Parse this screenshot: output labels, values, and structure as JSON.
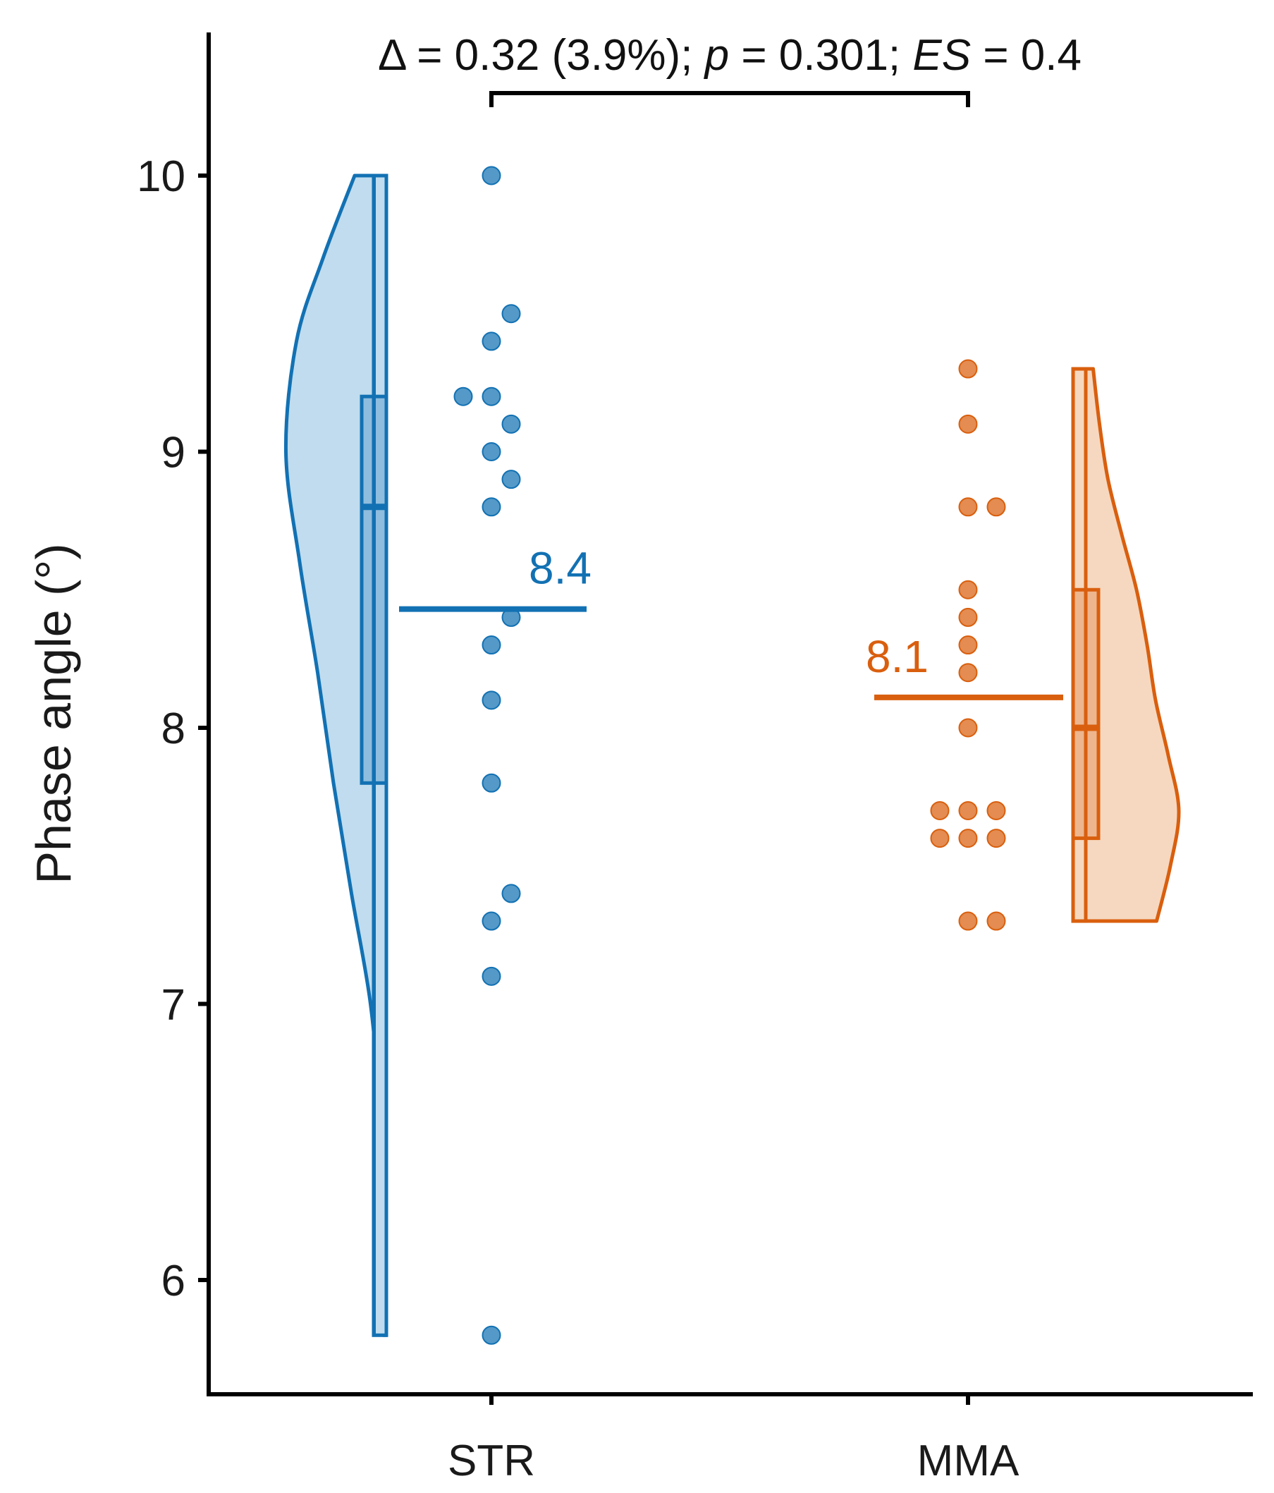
{
  "chart_data": {
    "type": "raincloud",
    "ylabel": "Phase angle (°)",
    "xlabel": "",
    "ylim": [
      5.55,
      10.5
    ],
    "yticks": [
      6,
      7,
      8,
      9,
      10
    ],
    "categories": [
      "STR",
      "MMA"
    ],
    "comparison": {
      "delta_text": "Δ = 0.32 (3.9%); ",
      "p_symbol": "p",
      "p_text": " = 0.301; ",
      "es_symbol": "ES",
      "es_text": " = 0.4"
    },
    "series": [
      {
        "name": "STR",
        "color": "#1271b3",
        "fill": "#c0dcee",
        "mean": 8.43,
        "mean_label": "8.4",
        "box": {
          "min": 5.8,
          "q1": 7.8,
          "median": 8.8,
          "q3": 9.2,
          "max": 10.0
        },
        "points": [
          10.0,
          9.5,
          9.4,
          9.2,
          9.2,
          9.1,
          9.0,
          8.9,
          8.8,
          8.4,
          8.3,
          8.1,
          7.8,
          7.4,
          7.3,
          7.1,
          5.8
        ],
        "density": [
          [
            5.8,
            0.03
          ],
          [
            6.2,
            0.03
          ],
          [
            6.6,
            0.06
          ],
          [
            7.0,
            0.15
          ],
          [
            7.4,
            0.33
          ],
          [
            7.8,
            0.5
          ],
          [
            8.2,
            0.65
          ],
          [
            8.6,
            0.82
          ],
          [
            9.0,
            0.95
          ],
          [
            9.4,
            0.85
          ],
          [
            9.7,
            0.6
          ],
          [
            10.0,
            0.3
          ]
        ]
      },
      {
        "name": "MMA",
        "color": "#d95f0e",
        "fill": "#f6d8c0",
        "mean": 8.11,
        "mean_label": "8.1",
        "box": {
          "min": 7.3,
          "q1": 7.6,
          "median": 8.0,
          "q3": 8.5,
          "max": 9.3
        },
        "points": [
          9.3,
          9.1,
          8.8,
          8.8,
          8.5,
          8.4,
          8.3,
          8.2,
          8.0,
          7.7,
          7.7,
          7.7,
          7.6,
          7.6,
          7.6,
          7.3,
          7.3
        ],
        "density": [
          [
            7.3,
            0.79
          ],
          [
            7.5,
            0.92
          ],
          [
            7.7,
            1.0
          ],
          [
            7.9,
            0.9
          ],
          [
            8.1,
            0.78
          ],
          [
            8.3,
            0.7
          ],
          [
            8.5,
            0.6
          ],
          [
            8.7,
            0.46
          ],
          [
            8.9,
            0.33
          ],
          [
            9.1,
            0.25
          ],
          [
            9.3,
            0.19
          ]
        ]
      }
    ]
  }
}
